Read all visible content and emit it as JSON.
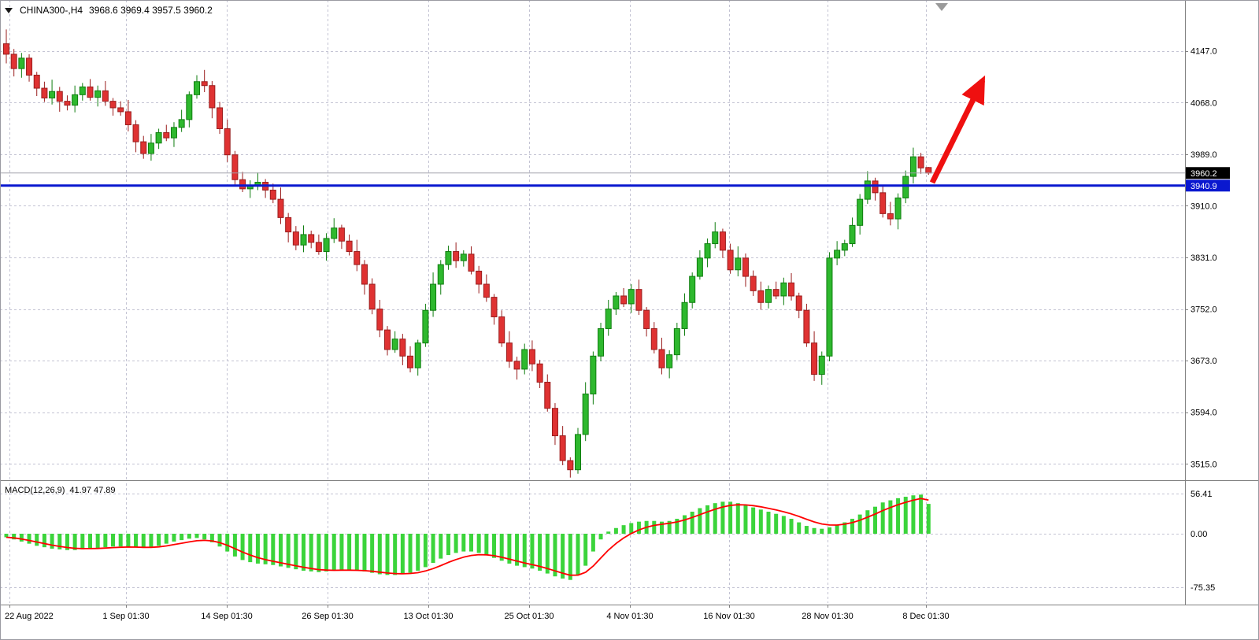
{
  "window": {
    "symbol_period": "CHINA300-,H4",
    "quote_ohlc": "3968.6 3969.4 3957.5 3960.2"
  },
  "chart_data": {
    "type": "candlestick",
    "title": "CHINA300-,H4",
    "symbol": "CHINA300-",
    "timeframe": "H4",
    "current_quote": {
      "open": 3968.6,
      "high": 3969.4,
      "low": 3957.5,
      "close": 3960.2
    },
    "grid": "dashed",
    "legend": "none",
    "y_axis": {
      "side": "right",
      "labels": [
        "4147.0",
        "4068.0",
        "3989.0",
        "3910.0",
        "3831.0",
        "3752.0",
        "3673.0",
        "3594.0",
        "3515.0"
      ],
      "range": [
        3490,
        4225
      ]
    },
    "x_axis": {
      "labels": [
        "22 Aug 2022",
        "1 Sep 01:30",
        "14 Sep 01:30",
        "26 Sep 01:30",
        "13 Oct 01:30",
        "25 Oct 01:30",
        "4 Nov 01:30",
        "16 Nov 01:30",
        "28 Nov 01:30",
        "8 Dec 01:30"
      ]
    },
    "colors": {
      "grid": "#c3c3d3",
      "up_fill": "#2eb82e",
      "up_stroke": "#0f7d0f",
      "down_fill": "#df3232",
      "down_stroke": "#9a1d1d"
    },
    "candles": [
      [
        4158,
        4180,
        4128,
        4142
      ],
      [
        4142,
        4150,
        4108,
        4120
      ],
      [
        4120,
        4144,
        4106,
        4136
      ],
      [
        4136,
        4142,
        4100,
        4110
      ],
      [
        4110,
        4115,
        4078,
        4090
      ],
      [
        4090,
        4100,
        4069,
        4075
      ],
      [
        4075,
        4103,
        4065,
        4085
      ],
      [
        4085,
        4092,
        4054,
        4070
      ],
      [
        4070,
        4079,
        4056,
        4064
      ],
      [
        4064,
        4094,
        4053,
        4080
      ],
      [
        4080,
        4098,
        4071,
        4092
      ],
      [
        4092,
        4104,
        4071,
        4076
      ],
      [
        4076,
        4094,
        4062,
        4086
      ],
      [
        4086,
        4101,
        4063,
        4070
      ],
      [
        4070,
        4075,
        4048,
        4060
      ],
      [
        4060,
        4070,
        4048,
        4054
      ],
      [
        4054,
        4072,
        4024,
        4034
      ],
      [
        4034,
        4041,
        3992,
        4008
      ],
      [
        4008,
        4017,
        3982,
        3990
      ],
      [
        3990,
        4020,
        3979,
        4006
      ],
      [
        4006,
        4028,
        3997,
        4022
      ],
      [
        4022,
        4034,
        4009,
        4014
      ],
      [
        4014,
        4038,
        4000,
        4030
      ],
      [
        4030,
        4057,
        4023,
        4042
      ],
      [
        4042,
        4085,
        4030,
        4080
      ],
      [
        4080,
        4110,
        4074,
        4100
      ],
      [
        4100,
        4118,
        4084,
        4094
      ],
      [
        4094,
        4101,
        4044,
        4060
      ],
      [
        4060,
        4069,
        4020,
        4028
      ],
      [
        4028,
        4042,
        3977,
        3988
      ],
      [
        3988,
        3994,
        3941,
        3950
      ],
      [
        3950,
        3962,
        3931,
        3936
      ],
      [
        3936,
        3949,
        3922,
        3941
      ],
      [
        3941,
        3961,
        3934,
        3946
      ],
      [
        3946,
        3951,
        3922,
        3934
      ],
      [
        3934,
        3944,
        3914,
        3920
      ],
      [
        3920,
        3938,
        3882,
        3892
      ],
      [
        3892,
        3899,
        3854,
        3870
      ],
      [
        3870,
        3879,
        3842,
        3850
      ],
      [
        3850,
        3880,
        3839,
        3866
      ],
      [
        3866,
        3872,
        3845,
        3854
      ],
      [
        3854,
        3866,
        3835,
        3840
      ],
      [
        3840,
        3868,
        3826,
        3860
      ],
      [
        3860,
        3891,
        3853,
        3876
      ],
      [
        3876,
        3881,
        3844,
        3856
      ],
      [
        3856,
        3866,
        3834,
        3840
      ],
      [
        3840,
        3858,
        3810,
        3820
      ],
      [
        3820,
        3827,
        3774,
        3790
      ],
      [
        3790,
        3799,
        3744,
        3752
      ],
      [
        3752,
        3766,
        3709,
        3720
      ],
      [
        3720,
        3726,
        3681,
        3690
      ],
      [
        3690,
        3718,
        3685,
        3706
      ],
      [
        3706,
        3714,
        3666,
        3680
      ],
      [
        3680,
        3695,
        3655,
        3662
      ],
      [
        3662,
        3705,
        3650,
        3700
      ],
      [
        3700,
        3760,
        3694,
        3750
      ],
      [
        3750,
        3808,
        3740,
        3790
      ],
      [
        3790,
        3827,
        3774,
        3820
      ],
      [
        3820,
        3849,
        3812,
        3840
      ],
      [
        3840,
        3854,
        3815,
        3826
      ],
      [
        3826,
        3842,
        3817,
        3836
      ],
      [
        3836,
        3848,
        3805,
        3810
      ],
      [
        3810,
        3818,
        3776,
        3790
      ],
      [
        3790,
        3805,
        3763,
        3770
      ],
      [
        3770,
        3775,
        3728,
        3740
      ],
      [
        3740,
        3750,
        3694,
        3700
      ],
      [
        3700,
        3718,
        3662,
        3672
      ],
      [
        3672,
        3679,
        3644,
        3660
      ],
      [
        3660,
        3699,
        3652,
        3690
      ],
      [
        3690,
        3704,
        3657,
        3668
      ],
      [
        3668,
        3674,
        3631,
        3640
      ],
      [
        3640,
        3652,
        3595,
        3600
      ],
      [
        3600,
        3608,
        3544,
        3558
      ],
      [
        3558,
        3573,
        3513,
        3520
      ],
      [
        3520,
        3525,
        3494,
        3506
      ],
      [
        3506,
        3570,
        3500,
        3560
      ],
      [
        3560,
        3640,
        3550,
        3622
      ],
      [
        3622,
        3687,
        3606,
        3680
      ],
      [
        3680,
        3731,
        3672,
        3722
      ],
      [
        3722,
        3766,
        3711,
        3752
      ],
      [
        3752,
        3778,
        3743,
        3772
      ],
      [
        3772,
        3784,
        3755,
        3760
      ],
      [
        3760,
        3790,
        3746,
        3782
      ],
      [
        3782,
        3797,
        3743,
        3750
      ],
      [
        3750,
        3755,
        3710,
        3722
      ],
      [
        3722,
        3732,
        3684,
        3690
      ],
      [
        3690,
        3708,
        3652,
        3662
      ],
      [
        3662,
        3689,
        3646,
        3682
      ],
      [
        3682,
        3731,
        3674,
        3722
      ],
      [
        3722,
        3776,
        3711,
        3762
      ],
      [
        3762,
        3808,
        3753,
        3802
      ],
      [
        3802,
        3842,
        3797,
        3830
      ],
      [
        3830,
        3860,
        3816,
        3852
      ],
      [
        3852,
        3885,
        3845,
        3870
      ],
      [
        3870,
        3875,
        3830,
        3842
      ],
      [
        3842,
        3852,
        3806,
        3812
      ],
      [
        3812,
        3848,
        3802,
        3830
      ],
      [
        3830,
        3837,
        3786,
        3802
      ],
      [
        3802,
        3811,
        3772,
        3780
      ],
      [
        3780,
        3794,
        3751,
        3762
      ],
      [
        3762,
        3788,
        3753,
        3782
      ],
      [
        3782,
        3794,
        3767,
        3772
      ],
      [
        3772,
        3800,
        3758,
        3792
      ],
      [
        3792,
        3807,
        3765,
        3772
      ],
      [
        3772,
        3777,
        3738,
        3750
      ],
      [
        3750,
        3760,
        3694,
        3700
      ],
      [
        3700,
        3718,
        3642,
        3652
      ],
      [
        3652,
        3687,
        3636,
        3680
      ],
      [
        3680,
        3839,
        3672,
        3830
      ],
      [
        3830,
        3856,
        3819,
        3842
      ],
      [
        3842,
        3858,
        3833,
        3852
      ],
      [
        3852,
        3892,
        3847,
        3880
      ],
      [
        3880,
        3928,
        3866,
        3920
      ],
      [
        3920,
        3963,
        3913,
        3948
      ],
      [
        3948,
        3953,
        3918,
        3930
      ],
      [
        3930,
        3940,
        3892,
        3898
      ],
      [
        3898,
        3916,
        3880,
        3890
      ],
      [
        3890,
        3929,
        3874,
        3922
      ],
      [
        3922,
        3964,
        3914,
        3955
      ],
      [
        3955,
        3999,
        3944,
        3985
      ],
      [
        3985,
        3991,
        3959,
        3968
      ],
      [
        3968.6,
        3969.4,
        3957.5,
        3960.2
      ]
    ],
    "overlays": {
      "bid_line": {
        "price": 3960.2,
        "label": "3960.2",
        "line_color": "#a0a0aa",
        "tag_bg": "#000000"
      },
      "support_line": {
        "price": 3940.9,
        "label": "3940.9",
        "color": "#0a18cf",
        "width": 3,
        "tag_bg": "#0a18cf"
      },
      "trend_arrow": {
        "from": [
          1184,
          232
        ],
        "to": [
          1248,
          102
        ],
        "color": "#ef1010"
      }
    },
    "indicator": {
      "name": "MACD(12,26,9)",
      "values_text": "41.97 47.89",
      "main_value": 41.97,
      "signal_value": 47.89,
      "axis_labels": [
        "56.41",
        "0.00",
        "-75.35"
      ],
      "histogram_color": "#3bd43b",
      "signal_color": "#ff0000",
      "histogram": [
        -5,
        -8,
        -11,
        -14,
        -17,
        -19,
        -21,
        -22,
        -23,
        -23,
        -22,
        -21,
        -20,
        -19,
        -18,
        -18,
        -18,
        -19,
        -20,
        -19,
        -17,
        -14,
        -11,
        -9,
        -7,
        -6,
        -8,
        -12,
        -18,
        -25,
        -32,
        -37,
        -40,
        -42,
        -43,
        -44,
        -46,
        -48,
        -50,
        -52,
        -53,
        -54,
        -53,
        -52,
        -51,
        -51,
        -52,
        -53,
        -55,
        -57,
        -58,
        -58,
        -57,
        -55,
        -52,
        -47,
        -41,
        -35,
        -30,
        -27,
        -25,
        -25,
        -27,
        -30,
        -34,
        -38,
        -42,
        -45,
        -47,
        -49,
        -52,
        -56,
        -60,
        -63,
        -65,
        -58,
        -45,
        -25,
        -8,
        3,
        8,
        12,
        15,
        17,
        18,
        18,
        17,
        18,
        21,
        26,
        31,
        36,
        40,
        43,
        45,
        45,
        43,
        40,
        37,
        34,
        31,
        28,
        25,
        21,
        16,
        11,
        8,
        7,
        9,
        12,
        16,
        21,
        27,
        33,
        38,
        44,
        47,
        50,
        52,
        54,
        55,
        41.97
      ]
    }
  }
}
